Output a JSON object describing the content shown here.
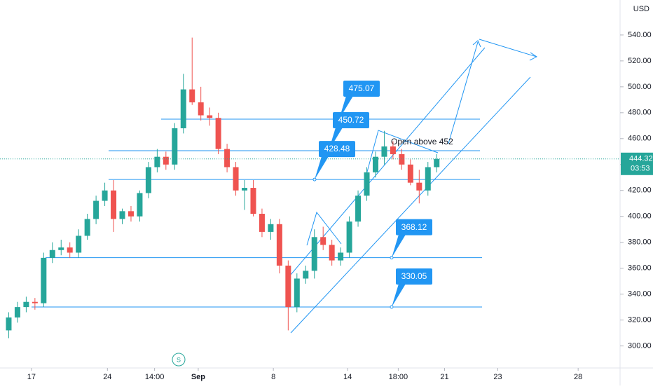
{
  "chart_data": {
    "type": "candlestick",
    "currency": "USD",
    "open": [
      312,
      322,
      330,
      334,
      333,
      368,
      374,
      376,
      372,
      385,
      398,
      412,
      420,
      398,
      404,
      400,
      418,
      438,
      446,
      440,
      468,
      498,
      488,
      478,
      476,
      452,
      438,
      420,
      422,
      402,
      388,
      394,
      362,
      330,
      352,
      358,
      384,
      378,
      366,
      372,
      396,
      416,
      434,
      446,
      454,
      448,
      440,
      426,
      420,
      438
    ],
    "high": [
      326,
      334,
      338,
      337,
      372,
      380,
      382,
      380,
      390,
      402,
      416,
      426,
      428,
      406,
      408,
      420,
      442,
      452,
      450,
      472,
      510,
      538,
      500,
      484,
      480,
      456,
      442,
      428,
      428,
      406,
      398,
      398,
      366,
      356,
      362,
      390,
      392,
      382,
      376,
      400,
      420,
      438,
      450,
      466,
      458,
      452,
      444,
      436,
      442,
      448
    ],
    "low": [
      306,
      318,
      326,
      328,
      330,
      364,
      370,
      368,
      368,
      382,
      394,
      408,
      388,
      394,
      396,
      396,
      414,
      434,
      436,
      436,
      464,
      486,
      474,
      470,
      448,
      434,
      416,
      405,
      400,
      384,
      382,
      356,
      312,
      326,
      348,
      352,
      374,
      362,
      362,
      368,
      392,
      412,
      430,
      440,
      444,
      436,
      424,
      410,
      416,
      434
    ],
    "close": [
      322,
      330,
      334,
      333,
      368,
      374,
      376,
      372,
      385,
      398,
      412,
      420,
      398,
      404,
      400,
      418,
      438,
      446,
      440,
      468,
      498,
      488,
      478,
      476,
      452,
      438,
      420,
      422,
      402,
      388,
      394,
      362,
      330,
      352,
      358,
      384,
      378,
      366,
      372,
      396,
      416,
      434,
      446,
      454,
      448,
      440,
      426,
      420,
      438,
      444.32
    ],
    "up_color": "#26a69a",
    "down_color": "#ef5350",
    "xlim": [
      -1,
      70
    ],
    "xticks": [
      {
        "value": 2.6,
        "label": "17"
      },
      {
        "value": 11.3,
        "label": "24"
      },
      {
        "value": 16.7,
        "label": "14:00"
      },
      {
        "value": 21.7,
        "label": "Sep"
      },
      {
        "value": 30.3,
        "label": "8"
      },
      {
        "value": 38.8,
        "label": "14"
      },
      {
        "value": 44.6,
        "label": "18:00"
      },
      {
        "value": 49.9,
        "label": "21"
      },
      {
        "value": 56,
        "label": "23"
      },
      {
        "value": 65.2,
        "label": "28"
      }
    ],
    "ylim": [
      283,
      567
    ],
    "yticks": [
      {
        "value": 300,
        "label": "300.00"
      },
      {
        "value": 320,
        "label": "320.00"
      },
      {
        "value": 340,
        "label": "340.00"
      },
      {
        "value": 360,
        "label": "360.00"
      },
      {
        "value": 380,
        "label": "380.00"
      },
      {
        "value": 400,
        "label": "400.00"
      },
      {
        "value": 420,
        "label": "420.00"
      },
      {
        "value": 440,
        "label": "440.00"
      },
      {
        "value": 460,
        "label": "460.00"
      },
      {
        "value": 480,
        "label": "480.00"
      },
      {
        "value": 500,
        "label": "500.00"
      },
      {
        "value": 520,
        "label": "520.00"
      },
      {
        "value": 540,
        "label": "540.00"
      }
    ],
    "levels": [
      475.07,
      450.72,
      428.48,
      368.12,
      330.05
    ],
    "annotation": "Open above 452",
    "last_price": 444.32,
    "countdown": "03:53"
  }
}
